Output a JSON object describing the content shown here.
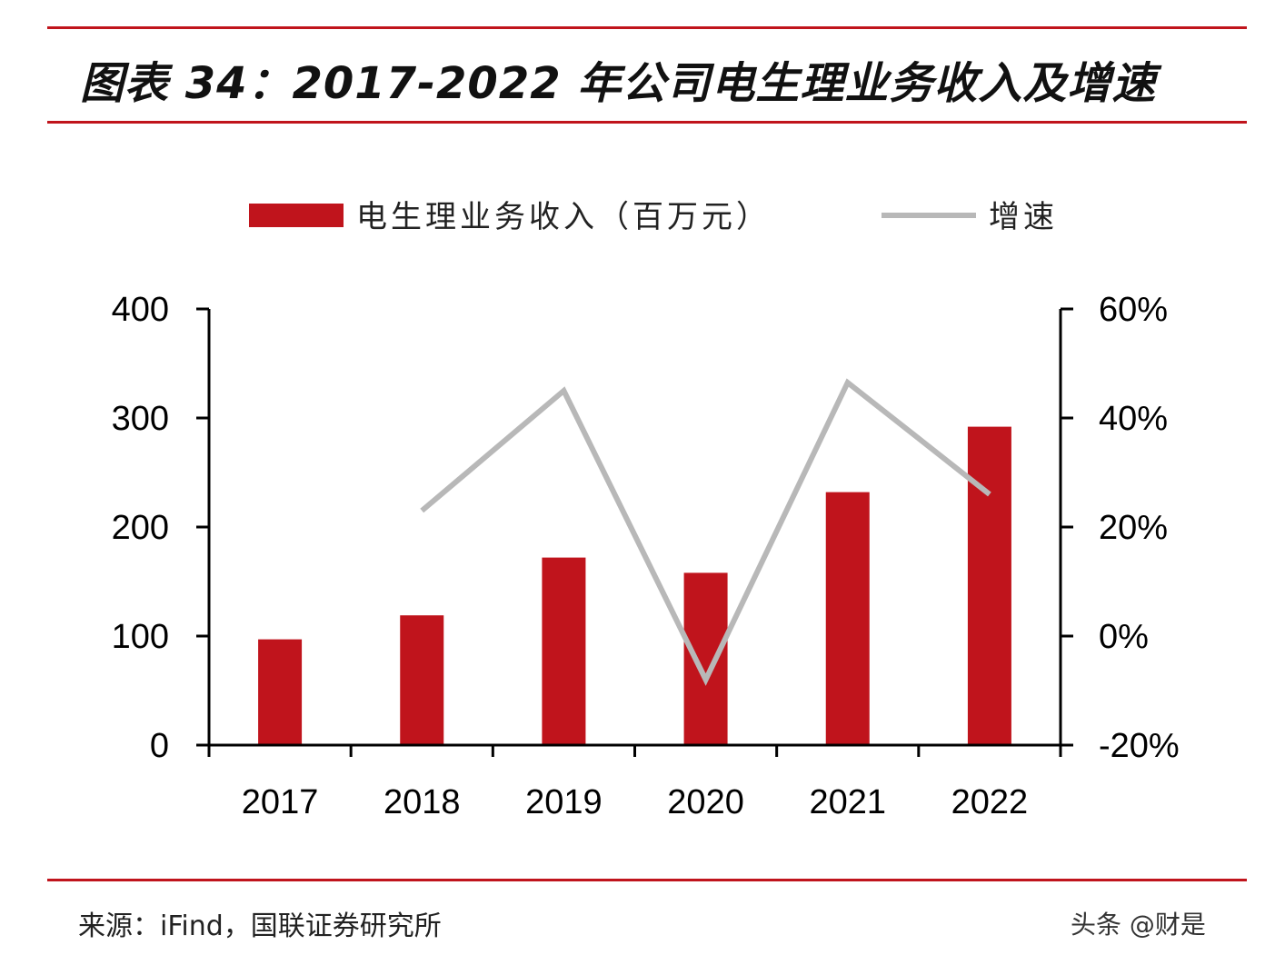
{
  "title": "图表 34：2017-2022 年公司电生理业务收入及增速",
  "source": "来源：iFind，国联证券研究所",
  "watermark": "头条 @财是",
  "chart_data": {
    "type": "bar+line",
    "categories": [
      "2017",
      "2018",
      "2019",
      "2020",
      "2021",
      "2022"
    ],
    "series": [
      {
        "name": "电生理业务收入（百万元）",
        "type": "bar",
        "axis": "left",
        "color": "#c0141c",
        "values": [
          97,
          119,
          172,
          158,
          232,
          292
        ]
      },
      {
        "name": "增速",
        "type": "line",
        "axis": "right",
        "color": "#b8b8b8",
        "values": [
          null,
          0.23,
          0.45,
          -0.08,
          0.465,
          0.26
        ]
      }
    ],
    "left_axis": {
      "ylim": [
        0,
        400
      ],
      "ticks": [
        0,
        100,
        200,
        300,
        400
      ],
      "tick_labels": [
        "0",
        "100",
        "200",
        "300",
        "400"
      ]
    },
    "right_axis": {
      "ylim": [
        -0.2,
        0.6
      ],
      "ticks": [
        -0.2,
        0,
        0.2,
        0.4,
        0.6
      ],
      "tick_labels": [
        "-20%",
        "0%",
        "20%",
        "40%",
        "60%"
      ]
    },
    "legend": "top",
    "grid": false
  }
}
